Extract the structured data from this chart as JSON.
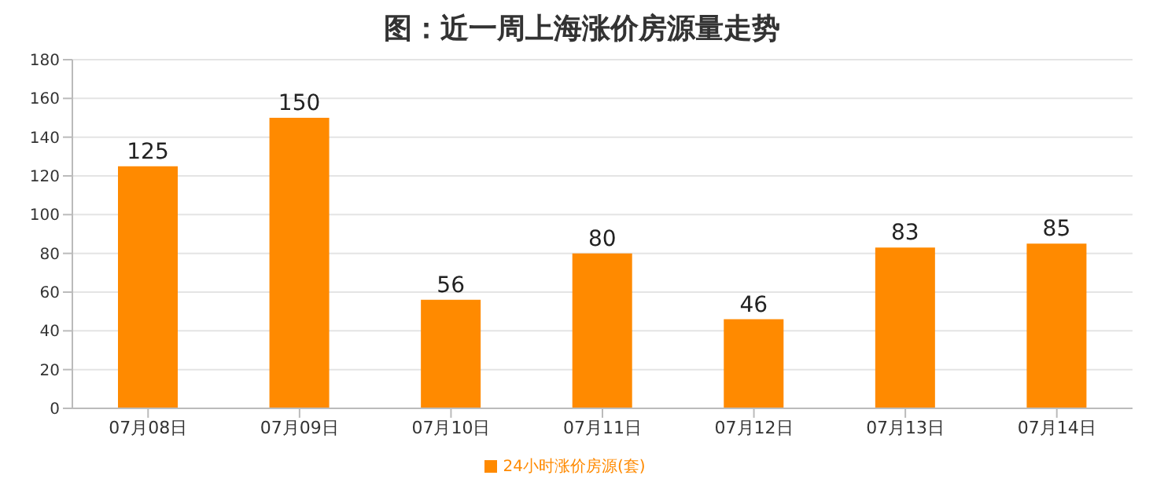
{
  "chart_data": {
    "type": "bar",
    "title": "图：近一周上海涨价房源量走势",
    "categories": [
      "07月08日",
      "07月09日",
      "07月10日",
      "07月11日",
      "07月12日",
      "07月13日",
      "07月14日"
    ],
    "series": [
      {
        "name": "24小时涨价房源(套)",
        "color": "#ff8a00",
        "values": [
          125,
          150,
          56,
          80,
          46,
          83,
          85
        ]
      }
    ],
    "ylim": [
      0,
      180
    ],
    "yticks": [
      0,
      20,
      40,
      60,
      80,
      100,
      120,
      140,
      160,
      180
    ],
    "grid": "y",
    "legend": "bottom",
    "data_labels": true
  }
}
